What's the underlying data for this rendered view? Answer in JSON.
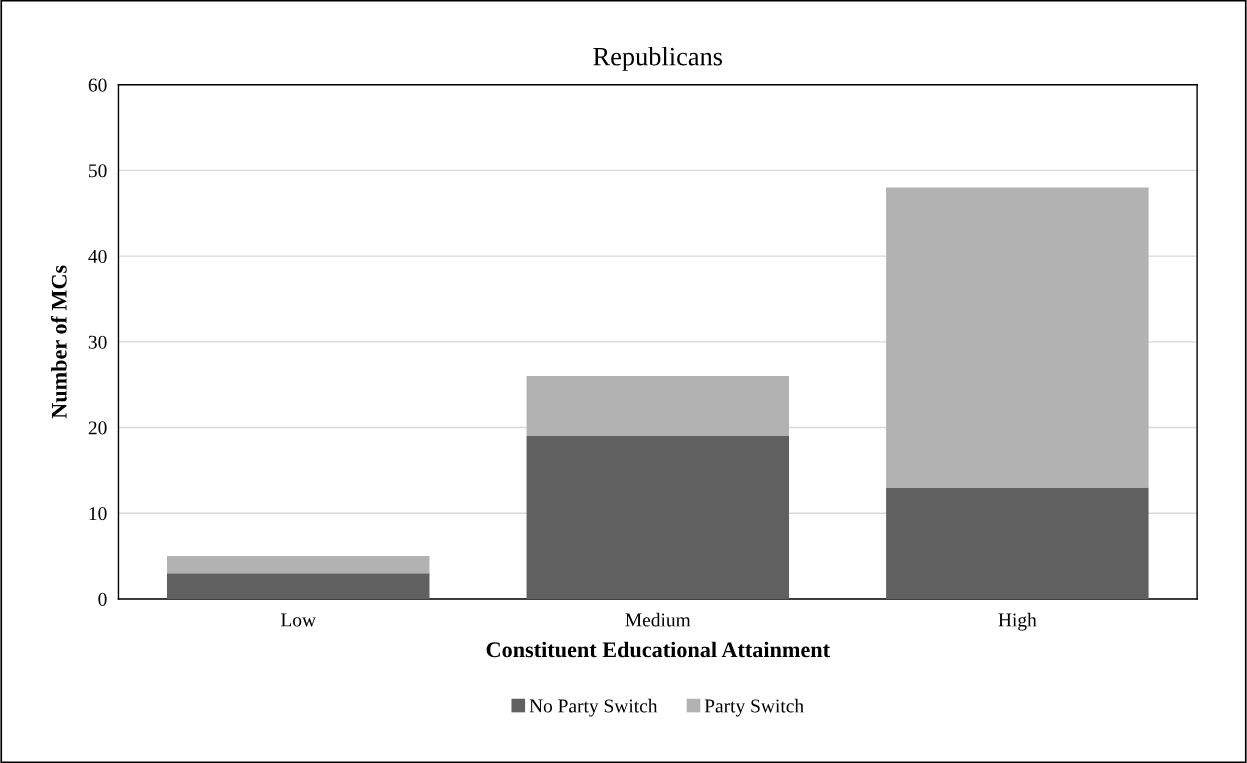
{
  "chart_data": {
    "type": "bar",
    "title": "Republicans",
    "xlabel": "Constituent Educational Attainment",
    "ylabel": "Number of MCs",
    "categories": [
      "Low",
      "Medium",
      "High"
    ],
    "series": [
      {
        "name": "No Party Switch",
        "color": "#606060",
        "values": [
          3,
          19,
          13
        ]
      },
      {
        "name": "Party Switch",
        "color": "#b2b2b2",
        "values": [
          2,
          7,
          35
        ]
      }
    ],
    "stacked": true,
    "ylim": [
      0,
      60
    ],
    "yticks": [
      0,
      10,
      20,
      30,
      40,
      50,
      60
    ],
    "grid": "y",
    "legend": "bottom"
  }
}
